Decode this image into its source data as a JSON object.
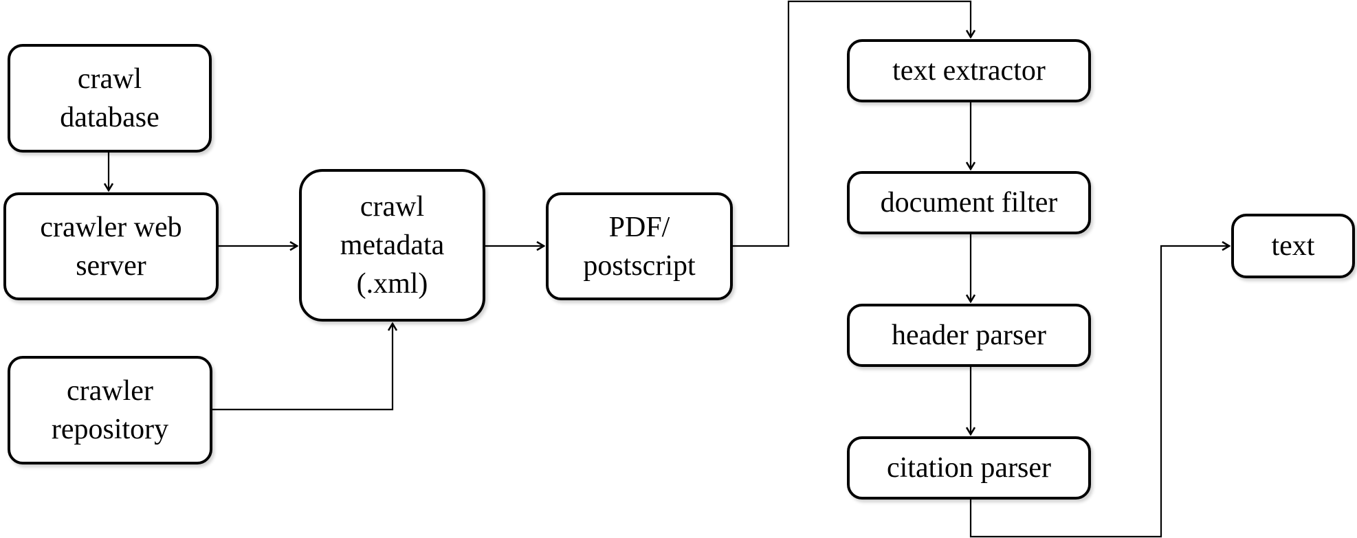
{
  "diagram": {
    "nodes": {
      "crawl_database": "crawl\ndatabase",
      "crawler_web_server": "crawler web\nserver",
      "crawler_repository": "crawler\nrepository",
      "crawl_metadata": "crawl\nmetadata\n(.xml)",
      "pdf_postscript": "PDF/\npostscript",
      "text_extractor": "text extractor",
      "document_filter": "document filter",
      "header_parser": "header parser",
      "citation_parser": "citation parser",
      "text": "text"
    },
    "edges": [
      {
        "from": "crawl database",
        "to": "crawler web server"
      },
      {
        "from": "crawler web server",
        "to": "crawl metadata (.xml)"
      },
      {
        "from": "crawler repository",
        "to": "crawl metadata (.xml)"
      },
      {
        "from": "crawl metadata (.xml)",
        "to": "PDF/postscript"
      },
      {
        "from": "PDF/postscript",
        "to": "text extractor"
      },
      {
        "from": "text extractor",
        "to": "document filter"
      },
      {
        "from": "document filter",
        "to": "header parser"
      },
      {
        "from": "header parser",
        "to": "citation parser"
      },
      {
        "from": "citation parser",
        "to": "text"
      }
    ]
  }
}
